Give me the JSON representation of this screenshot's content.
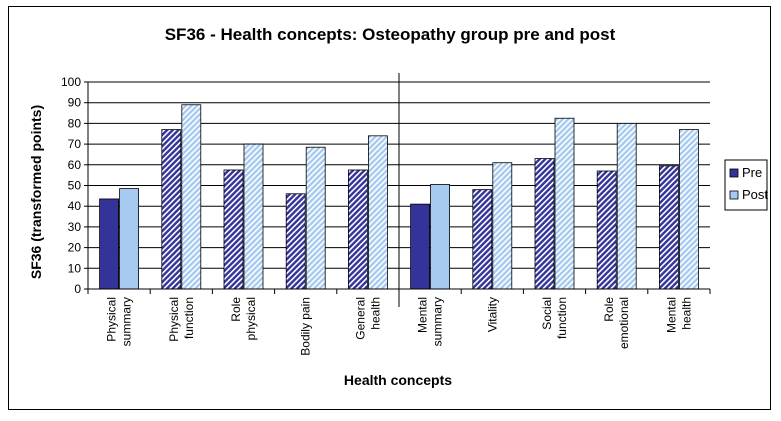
{
  "chart_data": {
    "type": "bar",
    "title": "SF36 - Health concepts: Osteopathy group pre and post",
    "xlabel": "Health concepts",
    "ylabel": "SF36 (transformed points)",
    "ylim": [
      0,
      100
    ],
    "yticks": [
      0,
      10,
      20,
      30,
      40,
      50,
      60,
      70,
      80,
      90,
      100
    ],
    "grid": true,
    "legend_position": "right",
    "categories": [
      [
        "Physical",
        "summary"
      ],
      [
        "Physical",
        "function"
      ],
      [
        "Role",
        "physical"
      ],
      [
        "Bodily pain"
      ],
      [
        "General",
        "health"
      ],
      [
        "Mental",
        "summary"
      ],
      [
        "Vitality"
      ],
      [
        "Social",
        "function"
      ],
      [
        "Role",
        "emotional"
      ],
      [
        "Mental",
        "health"
      ]
    ],
    "series": [
      {
        "name": "Pre",
        "values": [
          43.5,
          77,
          57.5,
          46,
          57.5,
          41,
          48,
          63,
          57,
          59.5
        ]
      },
      {
        "name": "Post",
        "values": [
          48.5,
          89,
          70,
          68.5,
          74,
          50.5,
          61,
          82.5,
          80,
          77
        ]
      }
    ],
    "summary_categories": [
      0,
      5
    ],
    "divider_after_category": 4,
    "colors": {
      "pre": "#33339a",
      "post": "#a6caf0",
      "hatch_light": "#ffffff",
      "axis": "#000000"
    }
  }
}
